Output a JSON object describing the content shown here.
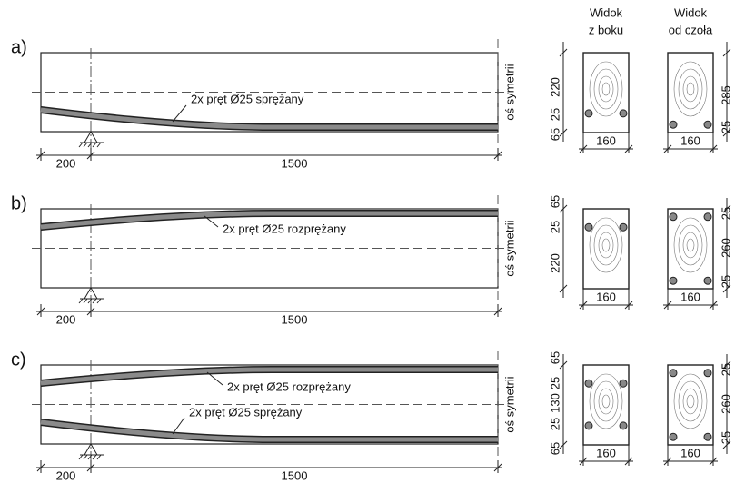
{
  "headers": {
    "side_view": [
      "Widok",
      "z boku"
    ],
    "front_view": [
      "Widok",
      "od czoła"
    ]
  },
  "panels": [
    {
      "label": "a)",
      "tendons": [
        "2x pręt Ø25 sprężany"
      ],
      "symmetry_axis": "oś symetrii",
      "dims": {
        "support": "200",
        "span": "1500"
      },
      "side_view": {
        "vertical": [
          "220",
          "25",
          "65"
        ],
        "width": "160"
      },
      "front_view": {
        "vertical": [
          "285",
          "25"
        ],
        "width": "160"
      }
    },
    {
      "label": "b)",
      "tendons": [
        "2x pręt Ø25 rozprężany"
      ],
      "symmetry_axis": "oś symetrii",
      "dims": {
        "support": "200",
        "span": "1500"
      },
      "side_view": {
        "vertical": [
          "65",
          "25",
          "220"
        ],
        "width": "160"
      },
      "front_view": {
        "vertical": [
          "25",
          "260",
          "25"
        ],
        "width": "160"
      }
    },
    {
      "label": "c)",
      "tendons": [
        "2x pręt Ø25 rozprężany",
        "2x pręt Ø25 sprężany"
      ],
      "symmetry_axis": "oś symetrii",
      "dims": {
        "support": "200",
        "span": "1500"
      },
      "side_view": {
        "vertical": [
          "65",
          "25",
          "130",
          "25",
          "65"
        ],
        "width": "160"
      },
      "front_view": {
        "vertical": [
          "25",
          "260",
          "25"
        ],
        "width": "160"
      }
    }
  ]
}
